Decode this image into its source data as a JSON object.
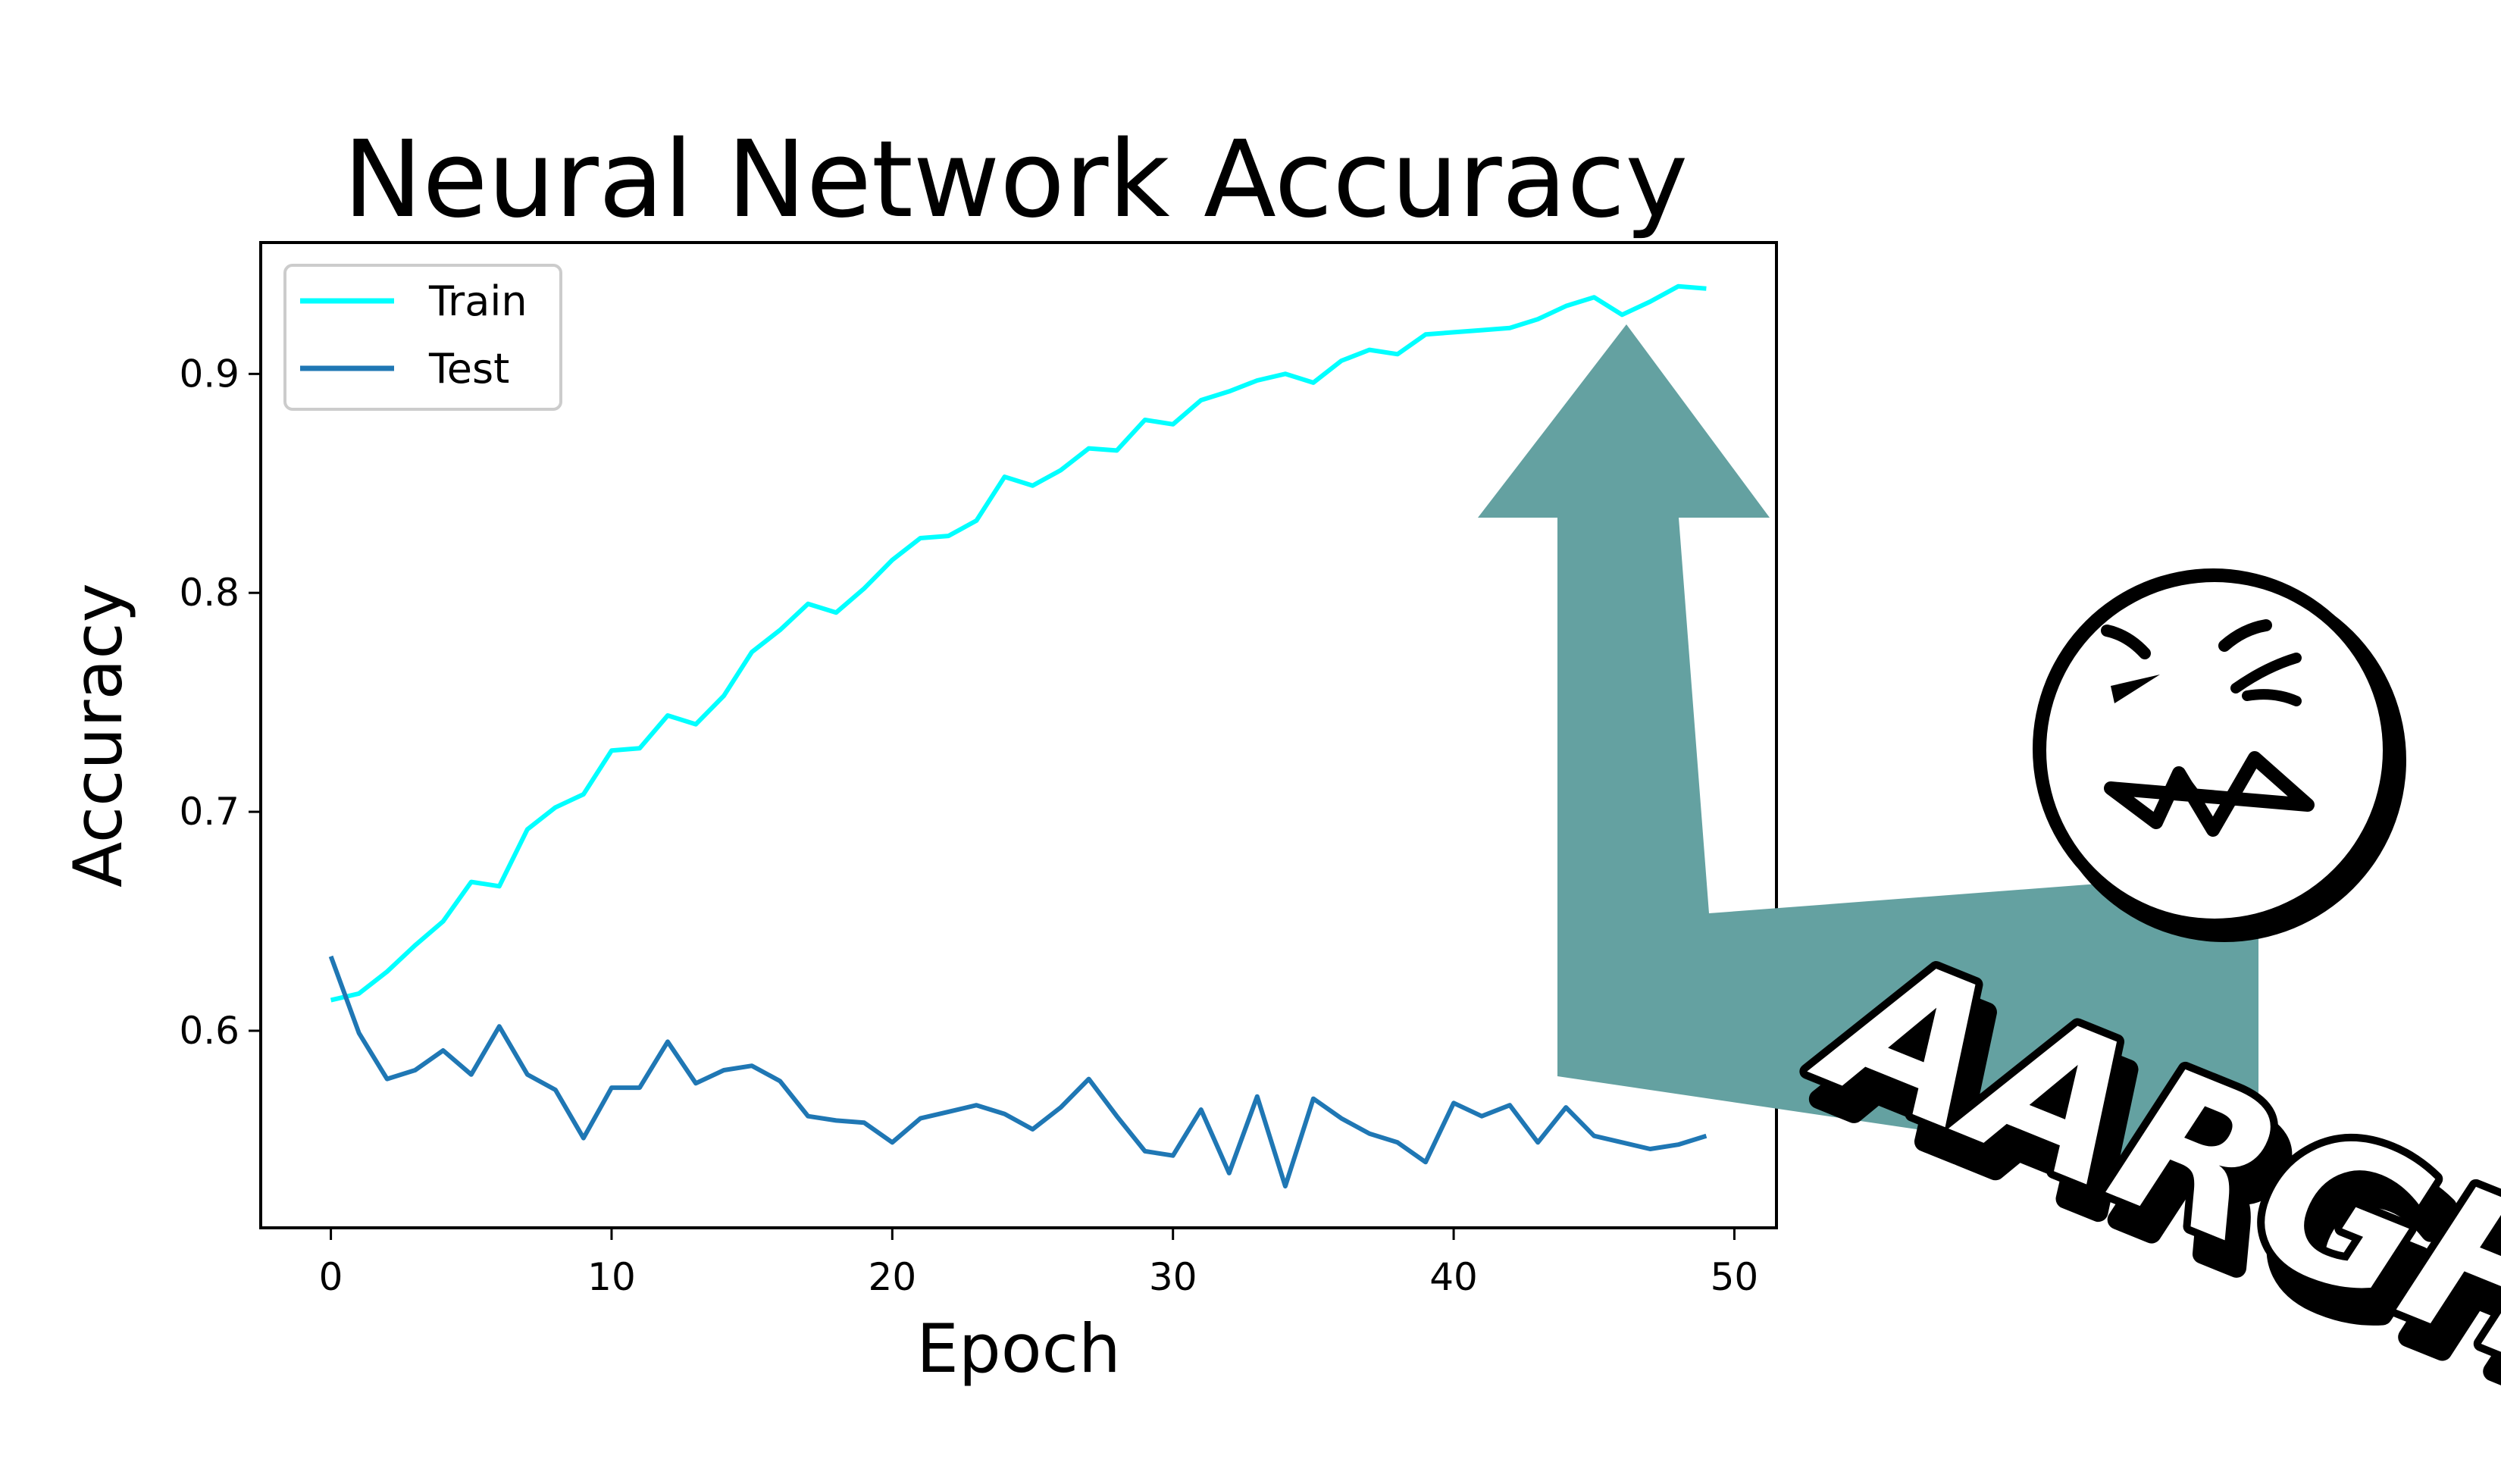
{
  "chart_data": {
    "type": "line",
    "title": "Neural Network Accuracy",
    "xlabel": "Epoch",
    "ylabel": "Accuracy",
    "xlim": [
      -2.5,
      51.5
    ],
    "ylim": [
      0.51,
      0.96
    ],
    "xticks": [
      0,
      10,
      20,
      30,
      40,
      50
    ],
    "yticks": [
      0.6,
      0.7,
      0.8,
      0.9
    ],
    "grid": false,
    "legend_position": "top-left",
    "x": [
      0,
      1,
      2,
      3,
      4,
      5,
      6,
      7,
      8,
      9,
      10,
      11,
      12,
      13,
      14,
      15,
      16,
      17,
      18,
      19,
      20,
      21,
      22,
      23,
      24,
      25,
      26,
      27,
      28,
      29,
      30,
      31,
      32,
      33,
      34,
      35,
      36,
      37,
      38,
      39,
      40,
      41,
      42,
      43,
      44,
      45,
      46,
      47,
      48,
      49
    ],
    "series": [
      {
        "name": "Train",
        "color": "#00ffff",
        "values": [
          0.614,
          0.617,
          0.627,
          0.639,
          0.65,
          0.668,
          0.666,
          0.692,
          0.702,
          0.708,
          0.728,
          0.729,
          0.744,
          0.74,
          0.753,
          0.773,
          0.783,
          0.795,
          0.791,
          0.802,
          0.815,
          0.825,
          0.826,
          0.833,
          0.853,
          0.849,
          0.856,
          0.866,
          0.865,
          0.879,
          0.877,
          0.888,
          0.892,
          0.897,
          0.9,
          0.896,
          0.906,
          0.911,
          0.909,
          0.918,
          0.919,
          0.92,
          0.921,
          0.925,
          0.931,
          0.935,
          0.927,
          0.933,
          0.94,
          0.939
        ]
      },
      {
        "name": "Test",
        "color": "#1f77b4",
        "values": [
          0.634,
          0.599,
          0.578,
          0.582,
          0.591,
          0.58,
          0.602,
          0.58,
          0.573,
          0.551,
          0.574,
          0.574,
          0.595,
          0.576,
          0.582,
          0.584,
          0.577,
          0.561,
          0.559,
          0.558,
          0.549,
          0.56,
          0.563,
          0.566,
          0.562,
          0.555,
          0.565,
          0.578,
          0.561,
          0.545,
          0.543,
          0.564,
          0.535,
          0.57,
          0.529,
          0.569,
          0.56,
          0.553,
          0.549,
          0.54,
          0.567,
          0.561,
          0.566,
          0.549,
          0.565,
          0.552,
          0.549,
          0.546,
          0.548,
          0.552
        ]
      }
    ]
  },
  "annotation": {
    "exclamation": "AARGH!",
    "arrow_color": "#64a1a1",
    "face": "angry-face-icon"
  }
}
